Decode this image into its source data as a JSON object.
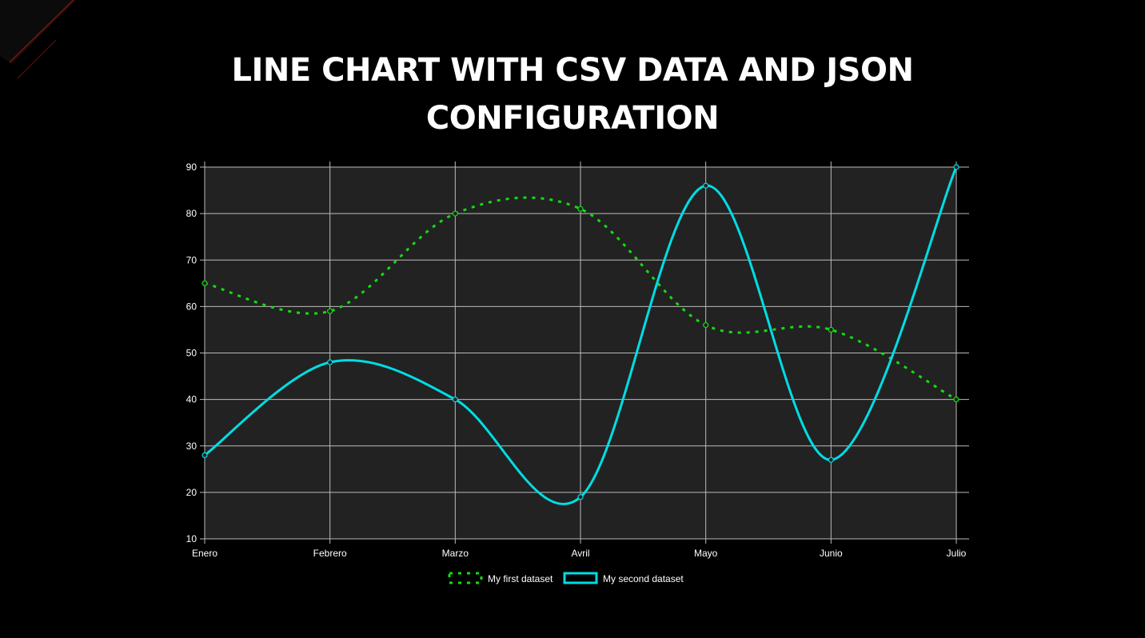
{
  "page": {
    "title_line1": "LINE CHART WITH CSV DATA AND JSON",
    "title_line2": "CONFIGURATION"
  },
  "chart_data": {
    "type": "line",
    "categories": [
      "Enero",
      "Febrero",
      "Marzo",
      "Avril",
      "Mayo",
      "Junio",
      "Julio"
    ],
    "ylim": [
      10,
      90
    ],
    "yticks": [
      10,
      20,
      30,
      40,
      50,
      60,
      70,
      80,
      90
    ],
    "grid": true,
    "legend_position": "bottom",
    "background_color": "#222222",
    "grid_color": "#bbbbbb",
    "series": [
      {
        "name": "My first dataset",
        "values": [
          65,
          59,
          80,
          81,
          56,
          55,
          40
        ],
        "color": "#11dd11",
        "style": "dotted"
      },
      {
        "name": "My second dataset",
        "values": [
          28,
          48,
          40,
          19,
          86,
          27,
          90
        ],
        "color": "#00dde3",
        "style": "solid"
      }
    ]
  }
}
